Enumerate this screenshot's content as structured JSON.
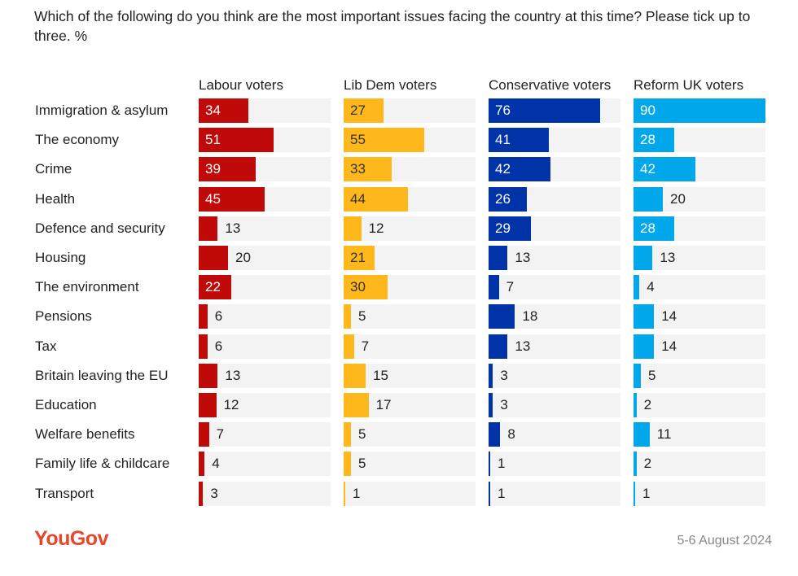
{
  "chart_data": {
    "type": "bar",
    "orientation": "horizontal",
    "title": "Which of the following do you think are the most important issues facing the country at this time? Please tick up to three. %",
    "categories": [
      "Immigration & asylum",
      "The economy",
      "Crime",
      "Health",
      "Defence and security",
      "Housing",
      "The environment",
      "Pensions",
      "Tax",
      "Britain leaving the EU",
      "Education",
      "Welfare benefits",
      "Family life & childcare",
      "Transport"
    ],
    "xlim": [
      0,
      90
    ],
    "grid": false,
    "series": [
      {
        "name": "Labour voters",
        "color": "#c00a0a",
        "label_color_inside": "#ffffff",
        "values": [
          34,
          51,
          39,
          45,
          13,
          20,
          22,
          6,
          6,
          13,
          12,
          7,
          4,
          3
        ]
      },
      {
        "name": "Lib Dem voters",
        "color": "#ffb81c",
        "label_color_inside": "#333333",
        "values": [
          27,
          55,
          33,
          44,
          12,
          21,
          30,
          5,
          7,
          15,
          17,
          5,
          5,
          1
        ]
      },
      {
        "name": "Conservative voters",
        "color": "#0033a8",
        "label_color_inside": "#ffffff",
        "values": [
          76,
          41,
          42,
          26,
          29,
          13,
          7,
          18,
          13,
          3,
          3,
          8,
          1,
          1
        ]
      },
      {
        "name": "Reform UK voters",
        "color": "#00a7eb",
        "label_color_inside": "#ffffff",
        "values": [
          90,
          28,
          42,
          20,
          28,
          13,
          4,
          14,
          14,
          5,
          2,
          11,
          2,
          1
        ]
      }
    ]
  },
  "footer": {
    "logo": "YouGov",
    "date": "5-6 August 2024"
  }
}
